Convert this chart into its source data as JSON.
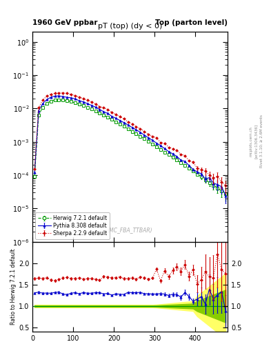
{
  "title_left": "1960 GeV ppbar",
  "title_right": "Top (parton level)",
  "plot_title": "pT (top) (dy < 0)",
  "watermark": "(MC_FBA_TTBAR)",
  "right_label1": "mcplots.cern.ch",
  "right_label2": "[arXiv:1306.3436]",
  "right_label3": "Rivet 3.1.10; ≥ 2.6M events",
  "ylabel_ratio": "Ratio to Herwig 7.2.1 default",
  "xlim": [
    0,
    480
  ],
  "ylim_main": [
    1e-06,
    2.0
  ],
  "ylim_ratio": [
    0.4,
    2.5
  ],
  "ratio_yticks": [
    0.5,
    1.0,
    1.5,
    2.0
  ],
  "herwig_color": "#009900",
  "pythia_color": "#0000cc",
  "sherpa_color": "#cc0000",
  "legend_entries": [
    "Herwig 7.2.1 default",
    "Pythia 8.308 default",
    "Sherpa 2.2.9 default"
  ],
  "background_color": "#ffffff",
  "band_color_inner": "#88cc00",
  "band_color_outer": "#ffff66",
  "pythia_ratio_base": 1.3,
  "sherpa_ratio_base": 1.65,
  "peak_pT": 65.0,
  "decay_scale": 85.0,
  "peak_value": 0.018,
  "n_bins": 48,
  "pT_max": 480.0
}
